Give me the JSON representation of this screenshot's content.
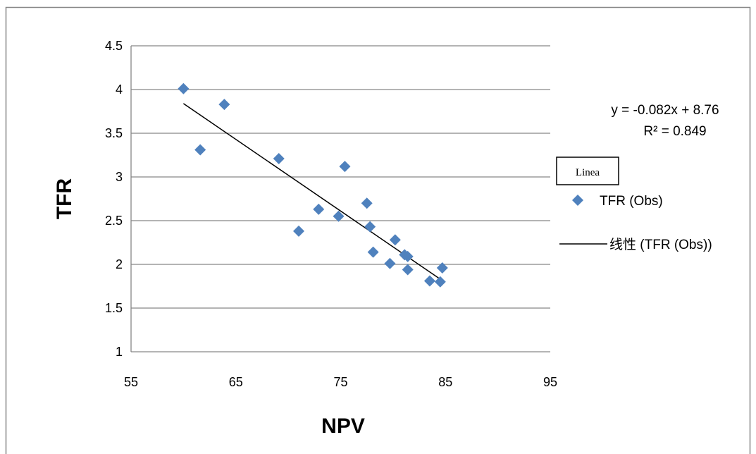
{
  "chart_data": {
    "type": "scatter",
    "xlabel": "NPV",
    "ylabel": "TFR",
    "xlim": [
      55,
      95
    ],
    "ylim": [
      1,
      4.5
    ],
    "x_ticks": [
      55,
      65,
      75,
      85,
      95
    ],
    "y_ticks": [
      1,
      1.5,
      2,
      2.5,
      3,
      3.5,
      4,
      4.5
    ],
    "y_tick_labels": [
      "1",
      "1.5",
      "2",
      "2.5",
      "3",
      "3.5",
      "4",
      "4.5"
    ],
    "grid": "horizontal",
    "legend_position": "right",
    "series": [
      {
        "name": "TFR (Obs)",
        "marker": "diamond",
        "color": "#4F81BD",
        "points": [
          [
            60.0,
            4.01
          ],
          [
            61.6,
            3.31
          ],
          [
            63.9,
            3.83
          ],
          [
            69.1,
            3.21
          ],
          [
            71.0,
            2.38
          ],
          [
            72.9,
            2.63
          ],
          [
            74.8,
            2.55
          ],
          [
            75.4,
            3.12
          ],
          [
            77.5,
            2.7
          ],
          [
            77.8,
            2.43
          ],
          [
            78.1,
            2.14
          ],
          [
            79.7,
            2.01
          ],
          [
            80.2,
            2.28
          ],
          [
            81.1,
            2.11
          ],
          [
            81.4,
            2.09
          ],
          [
            81.4,
            1.94
          ],
          [
            83.5,
            1.81
          ],
          [
            84.5,
            1.8
          ],
          [
            84.7,
            1.96
          ]
        ]
      }
    ],
    "trendline": {
      "name": "线性 (TFR (Obs))",
      "color": "#000000",
      "slope": -0.082,
      "intercept": 8.76,
      "x_range": [
        60,
        84.7
      ],
      "equation": "y = -0.082x + 8.76",
      "r_squared": "R² = 0.849"
    },
    "annotation_box": "Linea"
  },
  "colors": {
    "marker": "#4F81BD",
    "gridline": "#868686",
    "trendline": "#000000",
    "frame": "#868686"
  }
}
